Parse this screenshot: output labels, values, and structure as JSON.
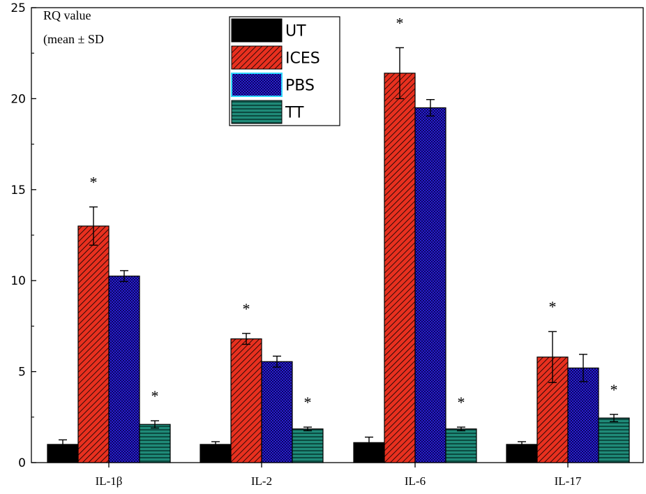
{
  "chart_data": {
    "type": "bar",
    "ylabel_lines": [
      "RQ value",
      "(mean ± SD"
    ],
    "ylim": [
      0,
      25
    ],
    "yticks": [
      0,
      5,
      10,
      15,
      20,
      25
    ],
    "categories": [
      "IL-1β",
      "IL-2",
      "IL-6",
      "IL-17"
    ],
    "series": [
      {
        "name": "UT",
        "values": [
          1.0,
          1.0,
          1.1,
          1.0
        ],
        "errors": [
          0.25,
          0.15,
          0.3,
          0.15
        ],
        "significant": [
          false,
          false,
          false,
          false
        ],
        "color": "#000000",
        "pattern": "solid"
      },
      {
        "name": "ICES",
        "values": [
          13.0,
          6.8,
          21.4,
          5.8
        ],
        "errors": [
          1.05,
          0.3,
          1.4,
          1.4
        ],
        "significant": [
          true,
          true,
          true,
          true
        ],
        "color": "#e8301f",
        "pattern": "diagonal"
      },
      {
        "name": "PBS",
        "values": [
          10.25,
          5.55,
          19.5,
          5.2
        ],
        "errors": [
          0.3,
          0.3,
          0.45,
          0.75
        ],
        "significant": [
          false,
          false,
          false,
          false
        ],
        "color": "#2a1fd0",
        "pattern": "checker"
      },
      {
        "name": "TT",
        "values": [
          2.1,
          1.85,
          1.85,
          2.45
        ],
        "errors": [
          0.2,
          0.1,
          0.1,
          0.2
        ],
        "significant": [
          true,
          true,
          true,
          true
        ],
        "color": "#1f7a6a",
        "pattern": "horizontal"
      }
    ],
    "significance_marker": "*",
    "legend_position": "top-center",
    "grid": false
  }
}
